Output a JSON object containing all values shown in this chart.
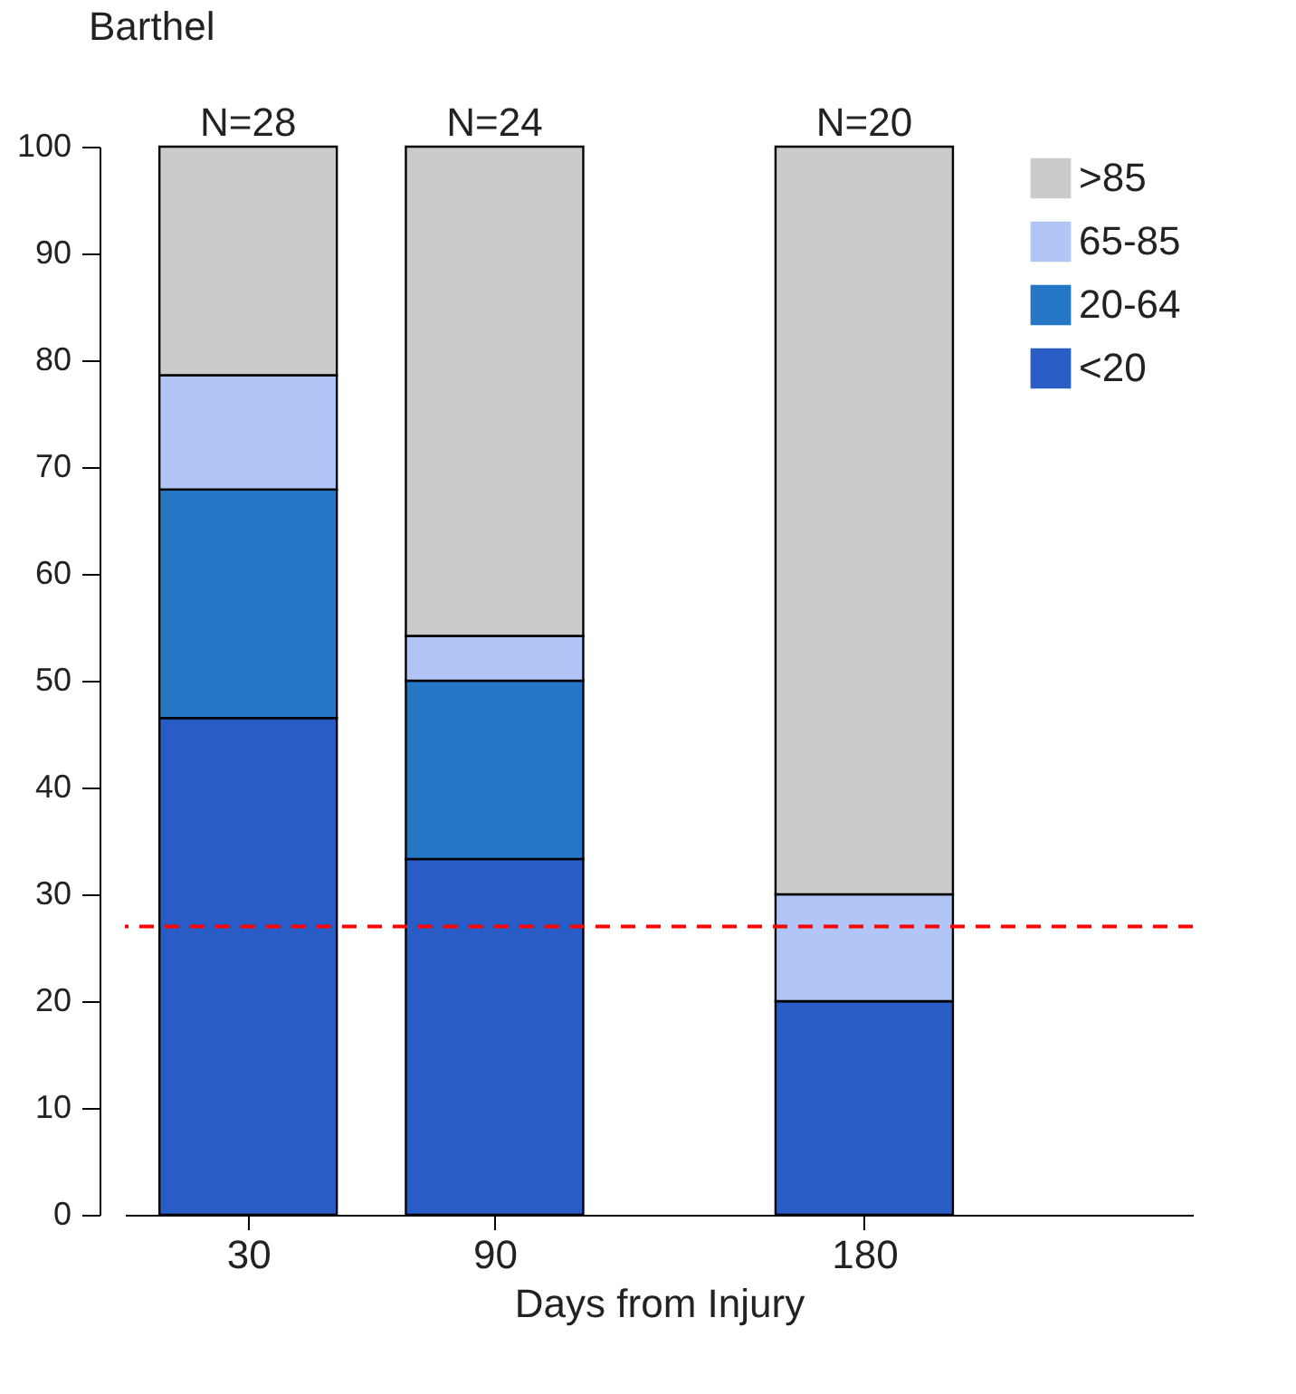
{
  "chart_data": {
    "type": "bar",
    "stacked": true,
    "xlabel": "Days from Injury",
    "x": [
      30,
      90,
      180
    ],
    "series": [
      {
        "name": "<20",
        "color": "#2a5cc6",
        "values": [
          46.5,
          33.3,
          20
        ]
      },
      {
        "name": "20-64",
        "color": "#2577c6",
        "values": [
          21.4,
          16.7,
          0
        ]
      },
      {
        "name": "65-85",
        "color": "#b1c6f7",
        "values": [
          10.7,
          4.2,
          10
        ]
      },
      {
        "name": ">85",
        "color": "#cbcbcb",
        "values": [
          21.4,
          45.8,
          70
        ]
      }
    ],
    "xlim": [
      0,
      260
    ],
    "xticks": [
      30,
      90,
      180
    ],
    "ylim": [
      0,
      100
    ],
    "yticks": [
      0,
      10,
      20,
      30,
      40,
      50,
      60,
      70,
      80,
      90,
      100
    ],
    "ref_lines": [
      {
        "axis": "y",
        "value": 27,
        "color": "#ff0000",
        "line_style": "dashed"
      }
    ],
    "annotations": [
      "Barthel",
      {
        "text": "N=28",
        "x": 30,
        "y": 100
      },
      {
        "text": "N=24",
        "x": 90,
        "y": 100
      },
      {
        "text": "N=20",
        "x": 180,
        "y": 100
      }
    ],
    "legend": "top right",
    "grid": false
  }
}
